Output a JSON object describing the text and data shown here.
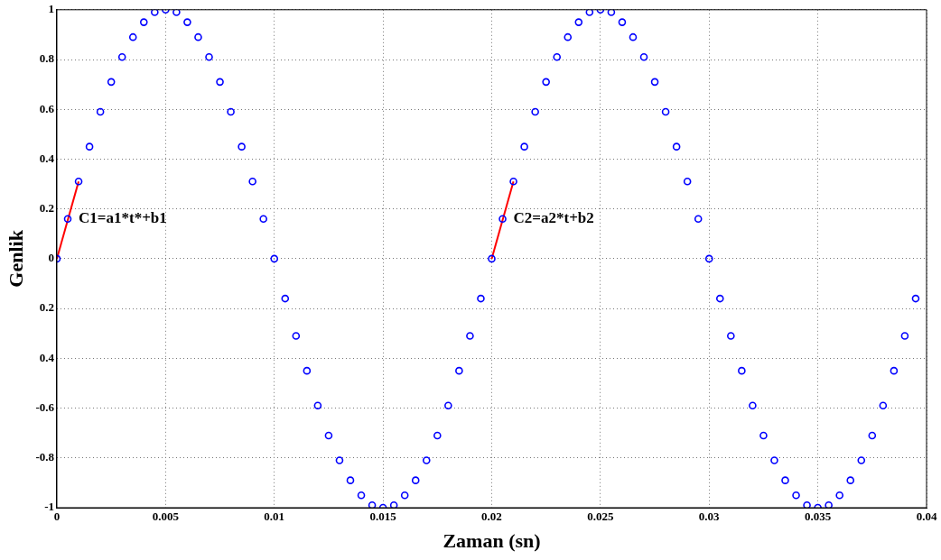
{
  "chart_data": {
    "type": "scatter",
    "xlabel": "Zaman (sn)",
    "ylabel": "Genlik",
    "xlim": [
      0,
      0.04
    ],
    "xticks": [
      0,
      0.005,
      0.01,
      0.015,
      0.02,
      0.025,
      0.03,
      0.035,
      0.04
    ],
    "ylim": [
      -1,
      1
    ],
    "yticks": [
      -1,
      -0.8,
      -0.6,
      {
        "value": -0.4,
        "label": "0.4"
      },
      {
        "value": -0.2,
        "label": "0.2"
      },
      0,
      0.2,
      0.4,
      0.6,
      0.8,
      1
    ],
    "grid": true,
    "legend": false,
    "series": [
      {
        "type": "scatter",
        "marker": "circle",
        "color": "#0000ff",
        "x": [
          0,
          0.0005,
          0.001,
          0.0015,
          0.002,
          0.0025,
          0.003,
          0.0035,
          0.004,
          0.0045,
          0.005,
          0.0055,
          0.006,
          0.0065,
          0.007,
          0.0075,
          0.008,
          0.0085,
          0.009,
          0.0095,
          0.01,
          0.0105,
          0.011,
          0.0115,
          0.012,
          0.0125,
          0.013,
          0.0135,
          0.014,
          0.0145,
          0.015,
          0.0155,
          0.016,
          0.0165,
          0.017,
          0.0175,
          0.018,
          0.0185,
          0.019,
          0.0195,
          0.02,
          0.0205,
          0.021,
          0.0215,
          0.022,
          0.0225,
          0.023,
          0.0235,
          0.024,
          0.0245,
          0.025,
          0.0255,
          0.026,
          0.0265,
          0.027,
          0.0275,
          0.028,
          0.0285,
          0.029,
          0.0295,
          0.03,
          0.0305,
          0.031,
          0.0315,
          0.032,
          0.0325,
          0.033,
          0.0335,
          0.034,
          0.0345,
          0.035,
          0.0355,
          0.036,
          0.0365,
          0.037,
          0.0375,
          0.038,
          0.0385,
          0.039,
          0.0395
        ],
        "values": [
          0,
          0.16,
          0.31,
          0.45,
          0.59,
          0.71,
          0.81,
          0.89,
          0.95,
          0.99,
          1,
          0.99,
          0.95,
          0.89,
          0.81,
          0.71,
          0.59,
          0.45,
          0.31,
          0.16,
          0,
          -0.16,
          -0.31,
          -0.45,
          -0.59,
          -0.71,
          -0.81,
          -0.89,
          -0.95,
          -0.99,
          -1,
          -0.99,
          -0.95,
          -0.89,
          -0.81,
          -0.71,
          -0.59,
          -0.45,
          -0.31,
          -0.16,
          0,
          0.16,
          0.31,
          0.45,
          0.59,
          0.71,
          0.81,
          0.89,
          0.95,
          0.99,
          1,
          0.99,
          0.95,
          0.89,
          0.81,
          0.71,
          0.59,
          0.45,
          0.31,
          0.16,
          0,
          -0.16,
          -0.31,
          -0.45,
          -0.59,
          -0.71,
          -0.81,
          -0.89,
          -0.95,
          -0.99,
          -1,
          -0.99,
          -0.95,
          -0.89,
          -0.81,
          -0.71,
          -0.59,
          -0.45,
          -0.31,
          -0.16
        ]
      },
      {
        "type": "line",
        "marker": "none",
        "color": "#ff0000",
        "x": [
          0,
          0.001
        ],
        "values": [
          0,
          0.31
        ]
      },
      {
        "type": "line",
        "marker": "none",
        "color": "#ff0000",
        "x": [
          0.02,
          0.021
        ],
        "values": [
          0,
          0.31
        ]
      }
    ],
    "annotations": [
      {
        "text": "C1=a1*t*+b1",
        "x": 0.0005,
        "y": 0.16
      },
      {
        "text": "C2=a2*t+b2",
        "x": 0.0205,
        "y": 0.16
      }
    ]
  }
}
